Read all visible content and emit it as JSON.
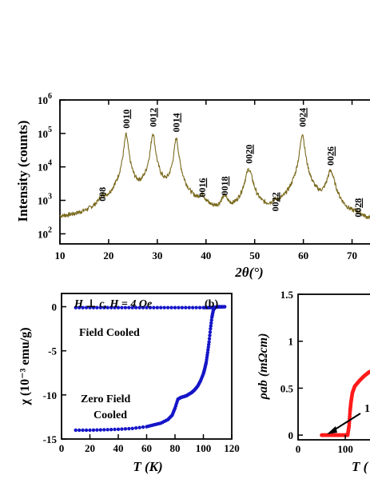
{
  "chart_data": [
    {
      "type": "line",
      "xlabel": "2θ(°)",
      "ylabel": "Intensity (counts)",
      "xlim": [
        10,
        75
      ],
      "ylim": [
        50,
        1000000
      ],
      "log_y": true,
      "x_ticks": [
        "10",
        "20",
        "30",
        "40",
        "50",
        "60",
        "70"
      ],
      "y_ticks": [
        {
          "base": "10",
          "exp": "2"
        },
        {
          "base": "10",
          "exp": "3"
        },
        {
          "base": "10",
          "exp": "4"
        },
        {
          "base": "10",
          "exp": "5"
        },
        {
          "base": "10",
          "exp": "6"
        }
      ],
      "line_color": "#7a6a1e",
      "peaks": [
        {
          "x": 18.7,
          "y": 600,
          "label": "008"
        },
        {
          "x": 23.6,
          "y": 90000,
          "label": "0010"
        },
        {
          "x": 29.1,
          "y": 100000,
          "label": "0012"
        },
        {
          "x": 33.9,
          "y": 70000,
          "label": "0014"
        },
        {
          "x": 39.2,
          "y": 800,
          "label": "0016"
        },
        {
          "x": 43.8,
          "y": 900,
          "label": "0018"
        },
        {
          "x": 48.8,
          "y": 8000,
          "label": "0020"
        },
        {
          "x": 54.2,
          "y": 300,
          "label": "0022"
        },
        {
          "x": 59.8,
          "y": 100000,
          "label": "0024"
        },
        {
          "x": 65.6,
          "y": 7000,
          "label": "0026"
        },
        {
          "x": 71.2,
          "y": 200,
          "label": "0028"
        }
      ]
    },
    {
      "type": "scatter",
      "panel_label": "(b)",
      "annotation": "H ⊥ c, H = 4 Oe",
      "xlabel": "T (K)",
      "ylabel": "χ (10⁻³ emu/g)",
      "xlim": [
        0,
        120
      ],
      "ylim": [
        -15,
        1.5
      ],
      "x_ticks": [
        "0",
        "20",
        "40",
        "60",
        "80",
        "100",
        "120"
      ],
      "y_ticks": [
        "0",
        "-5",
        "-10",
        "-15"
      ],
      "marker_color": "#1515c8",
      "series": [
        {
          "name": "Field Cooled",
          "x": [
            10,
            20,
            30,
            40,
            50,
            60,
            70,
            80,
            90,
            100,
            105,
            110,
            115
          ],
          "y": [
            -0.1,
            -0.1,
            -0.1,
            -0.1,
            -0.1,
            -0.1,
            -0.1,
            -0.1,
            -0.1,
            -0.1,
            -0.1,
            -0.05,
            0
          ]
        },
        {
          "name": "Zero Field Cooled",
          "x": [
            10,
            20,
            30,
            40,
            50,
            60,
            65,
            70,
            75,
            78,
            80,
            82,
            84,
            86,
            88,
            90,
            92,
            94,
            96,
            98,
            100,
            101,
            102,
            103,
            104,
            105,
            106,
            107,
            108,
            110,
            112,
            115
          ],
          "y": [
            -14,
            -14,
            -13.95,
            -13.9,
            -13.8,
            -13.6,
            -13.4,
            -13.2,
            -12.8,
            -12.3,
            -11.5,
            -10.5,
            -10.3,
            -10.2,
            -10.1,
            -9.9,
            -9.7,
            -9.4,
            -9.0,
            -8.4,
            -7.6,
            -7.0,
            -6.3,
            -5.2,
            -4.0,
            -2.5,
            -1.2,
            -0.4,
            -0.1,
            0,
            0,
            0
          ]
        }
      ]
    },
    {
      "type": "line",
      "xlabel": "T (",
      "ylabel": "ρab (mΩcm)",
      "xlim": [
        0,
        170
      ],
      "ylim": [
        -0.05,
        1.5
      ],
      "x_ticks": [
        "0",
        "100"
      ],
      "y_ticks": [
        "0",
        "0.5",
        "1",
        "1.5"
      ],
      "arrow_label": "1",
      "line_color": "#ff1a1a",
      "series": [
        {
          "x": [
            50,
            60,
            70,
            80,
            90,
            100,
            105,
            108,
            110,
            112,
            115,
            120,
            130,
            140,
            150,
            165
          ],
          "y": [
            0,
            0,
            0,
            0,
            0,
            0,
            0,
            0.1,
            0.25,
            0.35,
            0.45,
            0.52,
            0.58,
            0.63,
            0.67,
            0.71
          ]
        }
      ]
    }
  ]
}
